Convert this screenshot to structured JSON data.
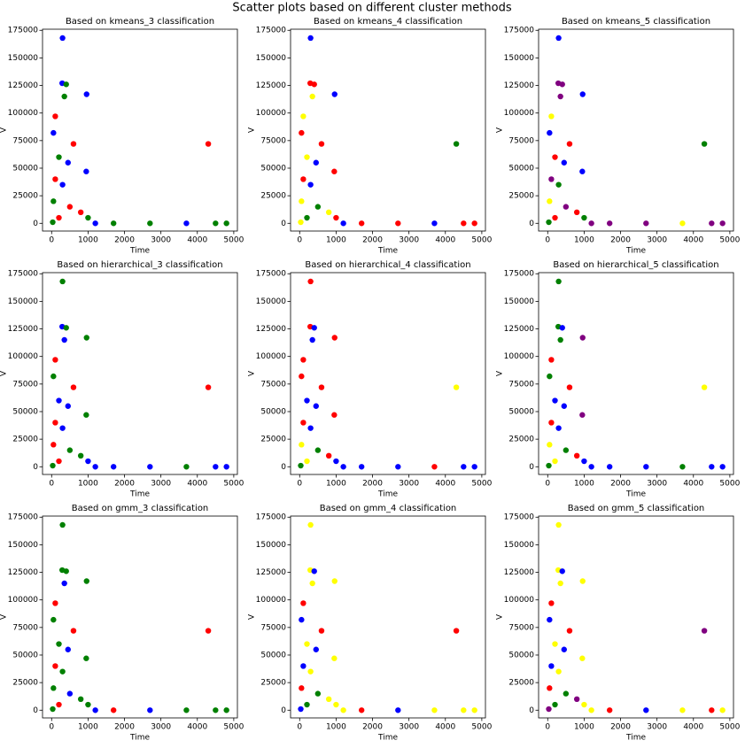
{
  "title": "Scatter plots based on different cluster methods",
  "chart_data": [
    {
      "type": "scatter",
      "title": "Based on kmeans_3 classification",
      "xlabel": "Time",
      "ylabel": "V",
      "x": [
        300,
        290,
        400,
        960,
        350,
        100,
        50,
        600,
        4300,
        200,
        450,
        950,
        100,
        300,
        50,
        500,
        800,
        1000,
        1200,
        1700,
        2700,
        3700,
        4500,
        4800,
        200,
        30
      ],
      "values": [
        168000,
        127000,
        126000,
        117000,
        115000,
        97000,
        82000,
        72000,
        72000,
        60000,
        55000,
        47000,
        40000,
        35000,
        20000,
        15000,
        10000,
        5000,
        0,
        0,
        0,
        0,
        0,
        0,
        5000,
        1000
      ],
      "colors": [
        "blue",
        "blue",
        "green",
        "blue",
        "green",
        "red",
        "blue",
        "red",
        "red",
        "green",
        "blue",
        "blue",
        "red",
        "blue",
        "green",
        "red",
        "red",
        "green",
        "blue",
        "green",
        "green",
        "blue",
        "green",
        "green",
        "red",
        "green"
      ],
      "xlim": [
        -250,
        5100
      ],
      "xticks": [
        0,
        1000,
        2000,
        3000,
        4000,
        5000
      ],
      "ylim": [
        -7000,
        176000
      ],
      "yticks": [
        0,
        25000,
        50000,
        75000,
        100000,
        125000,
        150000,
        175000
      ]
    },
    {
      "type": "scatter",
      "title": "Based on kmeans_4 classification",
      "xlabel": "Time",
      "ylabel": "V",
      "x": [
        300,
        290,
        400,
        960,
        350,
        100,
        50,
        600,
        4300,
        200,
        450,
        950,
        100,
        300,
        50,
        500,
        800,
        1000,
        1200,
        1700,
        2700,
        3700,
        4500,
        4800,
        200,
        30
      ],
      "values": [
        168000,
        127000,
        126000,
        117000,
        115000,
        97000,
        82000,
        72000,
        72000,
        60000,
        55000,
        47000,
        40000,
        35000,
        20000,
        15000,
        10000,
        5000,
        0,
        0,
        0,
        0,
        0,
        0,
        5000,
        1000
      ],
      "colors": [
        "blue",
        "red",
        "red",
        "blue",
        "yellow",
        "yellow",
        "red",
        "red",
        "green",
        "yellow",
        "blue",
        "red",
        "red",
        "blue",
        "yellow",
        "green",
        "yellow",
        "red",
        "blue",
        "red",
        "red",
        "blue",
        "red",
        "red",
        "green",
        "yellow"
      ],
      "xlim": [
        -250,
        5100
      ],
      "xticks": [
        0,
        1000,
        2000,
        3000,
        4000,
        5000
      ],
      "ylim": [
        -7000,
        176000
      ],
      "yticks": [
        0,
        25000,
        50000,
        75000,
        100000,
        125000,
        150000,
        175000
      ]
    },
    {
      "type": "scatter",
      "title": "Based on kmeans_5 classification",
      "xlabel": "Time",
      "ylabel": "V",
      "x": [
        300,
        290,
        400,
        960,
        350,
        100,
        50,
        600,
        4300,
        200,
        450,
        950,
        100,
        300,
        50,
        500,
        800,
        1000,
        1200,
        1700,
        2700,
        3700,
        4500,
        4800,
        200,
        30
      ],
      "values": [
        168000,
        127000,
        126000,
        117000,
        115000,
        97000,
        82000,
        72000,
        72000,
        60000,
        55000,
        47000,
        40000,
        35000,
        20000,
        15000,
        10000,
        5000,
        0,
        0,
        0,
        0,
        0,
        0,
        5000,
        1000
      ],
      "colors": [
        "blue",
        "purple",
        "purple",
        "blue",
        "purple",
        "yellow",
        "blue",
        "red",
        "green",
        "red",
        "blue",
        "blue",
        "purple",
        "green",
        "yellow",
        "purple",
        "red",
        "green",
        "purple",
        "purple",
        "purple",
        "yellow",
        "purple",
        "purple",
        "red",
        "green"
      ],
      "xlim": [
        -250,
        5100
      ],
      "xticks": [
        0,
        1000,
        2000,
        3000,
        4000,
        5000
      ],
      "ylim": [
        -7000,
        176000
      ],
      "yticks": [
        0,
        25000,
        50000,
        75000,
        100000,
        125000,
        150000,
        175000
      ]
    },
    {
      "type": "scatter",
      "title": "Based on hierarchical_3 classification",
      "xlabel": "Time",
      "ylabel": "V",
      "x": [
        300,
        290,
        400,
        960,
        350,
        100,
        50,
        600,
        4300,
        200,
        450,
        950,
        100,
        300,
        50,
        500,
        800,
        1000,
        1200,
        1700,
        2700,
        3700,
        4500,
        4800,
        200,
        30
      ],
      "values": [
        168000,
        127000,
        126000,
        117000,
        115000,
        97000,
        82000,
        72000,
        72000,
        60000,
        55000,
        47000,
        40000,
        35000,
        20000,
        15000,
        10000,
        5000,
        0,
        0,
        0,
        0,
        0,
        0,
        5000,
        1000
      ],
      "colors": [
        "green",
        "blue",
        "green",
        "green",
        "blue",
        "red",
        "green",
        "red",
        "red",
        "blue",
        "blue",
        "green",
        "red",
        "blue",
        "red",
        "green",
        "green",
        "blue",
        "blue",
        "blue",
        "blue",
        "green",
        "blue",
        "blue",
        "red",
        "green"
      ],
      "xlim": [
        -250,
        5100
      ],
      "xticks": [
        0,
        1000,
        2000,
        3000,
        4000,
        5000
      ],
      "ylim": [
        -7000,
        176000
      ],
      "yticks": [
        0,
        25000,
        50000,
        75000,
        100000,
        125000,
        150000,
        175000
      ]
    },
    {
      "type": "scatter",
      "title": "Based on hierarchical_4 classification",
      "xlabel": "Time",
      "ylabel": "V",
      "x": [
        300,
        290,
        400,
        960,
        350,
        100,
        50,
        600,
        4300,
        200,
        450,
        950,
        100,
        300,
        50,
        500,
        800,
        1000,
        1200,
        1700,
        2700,
        3700,
        4500,
        4800,
        200,
        30
      ],
      "values": [
        168000,
        127000,
        126000,
        117000,
        115000,
        97000,
        82000,
        72000,
        72000,
        60000,
        55000,
        47000,
        40000,
        35000,
        20000,
        15000,
        10000,
        5000,
        0,
        0,
        0,
        0,
        0,
        0,
        5000,
        1000
      ],
      "colors": [
        "red",
        "red",
        "blue",
        "red",
        "blue",
        "red",
        "red",
        "red",
        "yellow",
        "blue",
        "blue",
        "red",
        "red",
        "blue",
        "yellow",
        "green",
        "red",
        "blue",
        "blue",
        "blue",
        "blue",
        "red",
        "blue",
        "blue",
        "yellow",
        "green"
      ],
      "xlim": [
        -250,
        5100
      ],
      "xticks": [
        0,
        1000,
        2000,
        3000,
        4000,
        5000
      ],
      "ylim": [
        -7000,
        176000
      ],
      "yticks": [
        0,
        25000,
        50000,
        75000,
        100000,
        125000,
        150000,
        175000
      ]
    },
    {
      "type": "scatter",
      "title": "Based on hierarchical_5 classification",
      "xlabel": "Time",
      "ylabel": "V",
      "x": [
        300,
        290,
        400,
        960,
        350,
        100,
        50,
        600,
        4300,
        200,
        450,
        950,
        100,
        300,
        50,
        500,
        800,
        1000,
        1200,
        1700,
        2700,
        3700,
        4500,
        4800,
        200,
        30
      ],
      "values": [
        168000,
        127000,
        126000,
        117000,
        115000,
        97000,
        82000,
        72000,
        72000,
        60000,
        55000,
        47000,
        40000,
        35000,
        20000,
        15000,
        10000,
        5000,
        0,
        0,
        0,
        0,
        0,
        0,
        5000,
        1000
      ],
      "colors": [
        "green",
        "green",
        "blue",
        "purple",
        "green",
        "red",
        "green",
        "red",
        "yellow",
        "blue",
        "blue",
        "purple",
        "red",
        "blue",
        "yellow",
        "green",
        "red",
        "blue",
        "blue",
        "blue",
        "blue",
        "green",
        "blue",
        "blue",
        "yellow",
        "green"
      ],
      "xlim": [
        -250,
        5100
      ],
      "xticks": [
        0,
        1000,
        2000,
        3000,
        4000,
        5000
      ],
      "ylim": [
        -7000,
        176000
      ],
      "yticks": [
        0,
        25000,
        50000,
        75000,
        100000,
        125000,
        150000,
        175000
      ]
    },
    {
      "type": "scatter",
      "title": "Based on gmm_3 classification",
      "xlabel": "Time",
      "ylabel": "V",
      "x": [
        300,
        290,
        400,
        960,
        350,
        100,
        50,
        600,
        4300,
        200,
        450,
        950,
        100,
        300,
        50,
        500,
        800,
        1000,
        1200,
        1700,
        2700,
        3700,
        4500,
        4800,
        200,
        30
      ],
      "values": [
        168000,
        127000,
        126000,
        117000,
        115000,
        97000,
        82000,
        72000,
        72000,
        60000,
        55000,
        47000,
        40000,
        35000,
        20000,
        15000,
        10000,
        5000,
        0,
        0,
        0,
        0,
        0,
        0,
        5000,
        1000
      ],
      "colors": [
        "green",
        "green",
        "green",
        "green",
        "blue",
        "red",
        "green",
        "red",
        "red",
        "green",
        "blue",
        "green",
        "red",
        "green",
        "green",
        "blue",
        "green",
        "green",
        "blue",
        "red",
        "blue",
        "green",
        "green",
        "green",
        "red",
        "green"
      ],
      "xlim": [
        -250,
        5100
      ],
      "xticks": [
        0,
        1000,
        2000,
        3000,
        4000,
        5000
      ],
      "ylim": [
        -7000,
        176000
      ],
      "yticks": [
        0,
        25000,
        50000,
        75000,
        100000,
        125000,
        150000,
        175000
      ]
    },
    {
      "type": "scatter",
      "title": "Based on gmm_4 classification",
      "xlabel": "Time",
      "ylabel": "V",
      "x": [
        300,
        290,
        400,
        960,
        350,
        100,
        50,
        600,
        4300,
        200,
        450,
        950,
        100,
        300,
        50,
        500,
        800,
        1000,
        1200,
        1700,
        2700,
        3700,
        4500,
        4800,
        200,
        30
      ],
      "values": [
        168000,
        127000,
        126000,
        117000,
        115000,
        97000,
        82000,
        72000,
        72000,
        60000,
        55000,
        47000,
        40000,
        35000,
        20000,
        15000,
        10000,
        5000,
        0,
        0,
        0,
        0,
        0,
        0,
        5000,
        1000
      ],
      "colors": [
        "yellow",
        "yellow",
        "blue",
        "yellow",
        "yellow",
        "red",
        "blue",
        "red",
        "red",
        "yellow",
        "blue",
        "yellow",
        "blue",
        "yellow",
        "red",
        "green",
        "yellow",
        "yellow",
        "yellow",
        "red",
        "blue",
        "yellow",
        "yellow",
        "yellow",
        "green",
        "blue"
      ],
      "xlim": [
        -250,
        5100
      ],
      "xticks": [
        0,
        1000,
        2000,
        3000,
        4000,
        5000
      ],
      "ylim": [
        -7000,
        176000
      ],
      "yticks": [
        0,
        25000,
        50000,
        75000,
        100000,
        125000,
        150000,
        175000
      ]
    },
    {
      "type": "scatter",
      "title": "Based on gmm_5 classification",
      "xlabel": "Time",
      "ylabel": "V",
      "x": [
        300,
        290,
        400,
        960,
        350,
        100,
        50,
        600,
        4300,
        200,
        450,
        950,
        100,
        300,
        50,
        500,
        800,
        1000,
        1200,
        1700,
        2700,
        3700,
        4500,
        4800,
        200,
        30
      ],
      "values": [
        168000,
        127000,
        126000,
        117000,
        115000,
        97000,
        82000,
        72000,
        72000,
        60000,
        55000,
        47000,
        40000,
        35000,
        20000,
        15000,
        10000,
        5000,
        0,
        0,
        0,
        0,
        0,
        0,
        5000,
        1000
      ],
      "colors": [
        "yellow",
        "yellow",
        "blue",
        "yellow",
        "yellow",
        "red",
        "blue",
        "red",
        "purple",
        "yellow",
        "blue",
        "yellow",
        "blue",
        "yellow",
        "red",
        "green",
        "purple",
        "yellow",
        "yellow",
        "red",
        "blue",
        "yellow",
        "red",
        "yellow",
        "green",
        "purple"
      ],
      "xlim": [
        -250,
        5100
      ],
      "xticks": [
        0,
        1000,
        2000,
        3000,
        4000,
        5000
      ],
      "ylim": [
        -7000,
        176000
      ],
      "yticks": [
        0,
        25000,
        50000,
        75000,
        100000,
        125000,
        150000,
        175000
      ]
    }
  ]
}
